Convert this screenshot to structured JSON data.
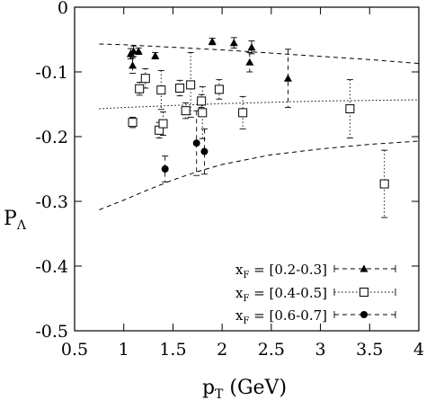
{
  "chart_data": {
    "type": "scatter",
    "xlabel": "p",
    "xlabel_sub": "T",
    "xlabel_unit": " (GeV)",
    "ylabel": "P",
    "ylabel_sub": "Λ",
    "xlim": [
      0.5,
      4.0
    ],
    "ylim": [
      -0.5,
      0.0
    ],
    "x_ticks": [
      0.5,
      1,
      1.5,
      2,
      2.5,
      3,
      3.5,
      4
    ],
    "x_tick_labels": [
      "0.5",
      "1",
      "1.5",
      "2",
      "2.5",
      "3",
      "3.5",
      "4"
    ],
    "y_ticks": [
      0,
      -0.1,
      -0.2,
      -0.3,
      -0.4,
      -0.5
    ],
    "y_tick_labels": [
      "0",
      "-0.1",
      "-0.2",
      "-0.3",
      "-0.4",
      "-0.5"
    ],
    "grid": false,
    "legend_position": "bottom-right",
    "series": [
      {
        "name": "x",
        "name_sub": "F",
        "name_suffix": " = [0.2-0.3]",
        "marker": "filled-triangle",
        "line_style": "dashed",
        "points": [
          {
            "x": 1.07,
            "y": -0.072,
            "err": 0.008
          },
          {
            "x": 1.09,
            "y": -0.09,
            "err": 0.012
          },
          {
            "x": 1.1,
            "y": -0.068,
            "err": 0.008
          },
          {
            "x": 1.15,
            "y": -0.068,
            "err": 0.005
          },
          {
            "x": 1.32,
            "y": -0.075,
            "err": 0.005
          },
          {
            "x": 1.9,
            "y": -0.053,
            "err": 0.005
          },
          {
            "x": 2.12,
            "y": -0.055,
            "err": 0.008
          },
          {
            "x": 2.28,
            "y": -0.085,
            "err": 0.015
          },
          {
            "x": 2.3,
            "y": -0.062,
            "err": 0.01
          },
          {
            "x": 2.67,
            "y": -0.11,
            "err": 0.045
          }
        ]
      },
      {
        "name": "x",
        "name_sub": "F",
        "name_suffix": " = [0.4-0.5]",
        "marker": "open-square",
        "line_style": "dotted",
        "points": [
          {
            "x": 1.09,
            "y": -0.178,
            "err": 0.008
          },
          {
            "x": 1.16,
            "y": -0.126,
            "err": 0.01
          },
          {
            "x": 1.22,
            "y": -0.11,
            "err": 0.015
          },
          {
            "x": 1.36,
            "y": -0.19,
            "err": 0.012
          },
          {
            "x": 1.38,
            "y": -0.128,
            "err": 0.03
          },
          {
            "x": 1.4,
            "y": -0.18,
            "err": 0.018
          },
          {
            "x": 1.57,
            "y": -0.125,
            "err": 0.012
          },
          {
            "x": 1.63,
            "y": -0.16,
            "err": 0.012
          },
          {
            "x": 1.68,
            "y": -0.12,
            "err": 0.05
          },
          {
            "x": 1.79,
            "y": -0.145,
            "err": 0.01
          },
          {
            "x": 1.8,
            "y": -0.163,
            "err": 0.04
          },
          {
            "x": 1.97,
            "y": -0.127,
            "err": 0.015
          },
          {
            "x": 2.21,
            "y": -0.163,
            "err": 0.025
          },
          {
            "x": 3.3,
            "y": -0.157,
            "err": 0.045
          },
          {
            "x": 3.65,
            "y": -0.273,
            "err": 0.052
          }
        ]
      },
      {
        "name": "x",
        "name_sub": "F",
        "name_suffix": " = [0.6-0.7]",
        "marker": "filled-circle",
        "line_style": "dashed",
        "points": [
          {
            "x": 1.42,
            "y": -0.25,
            "err": 0.02
          },
          {
            "x": 1.74,
            "y": -0.21,
            "err": 0.05
          },
          {
            "x": 1.82,
            "y": -0.223,
            "err": 0.035
          }
        ]
      }
    ],
    "curves": [
      {
        "style": "dashed",
        "x": [
          0.75,
          1.0,
          1.5,
          2.0,
          2.5,
          3.0,
          3.5,
          4.0
        ],
        "y": [
          -0.057,
          -0.058,
          -0.062,
          -0.066,
          -0.071,
          -0.076,
          -0.081,
          -0.087
        ]
      },
      {
        "style": "dotted",
        "x": [
          0.75,
          1.0,
          1.5,
          2.0,
          2.5,
          3.0,
          3.5,
          4.0
        ],
        "y": [
          -0.157,
          -0.155,
          -0.152,
          -0.149,
          -0.147,
          -0.145,
          -0.144,
          -0.143
        ]
      },
      {
        "style": "dashed",
        "x": [
          0.75,
          1.0,
          1.25,
          1.5,
          1.75,
          2.0,
          2.5,
          3.0,
          3.5,
          4.0
        ],
        "y": [
          -0.313,
          -0.298,
          -0.282,
          -0.267,
          -0.254,
          -0.243,
          -0.228,
          -0.219,
          -0.212,
          -0.207
        ]
      }
    ]
  }
}
